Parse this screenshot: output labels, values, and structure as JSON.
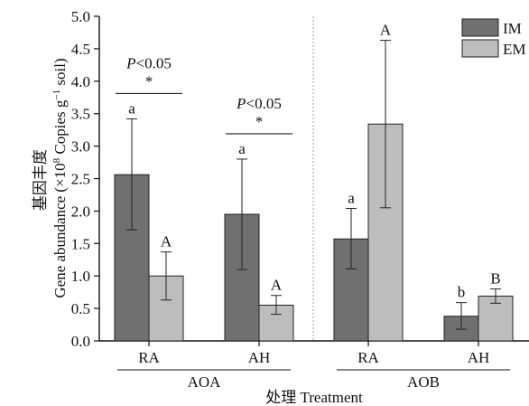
{
  "chart_data": {
    "type": "bar",
    "ylabel_cn": "基因丰度",
    "ylabel_en_prefix": "Gene abundance (×10",
    "ylabel_sup1": "8",
    "ylabel_mid": " Copies g",
    "ylabel_sup2": "−1",
    "ylabel_end": " soil)",
    "xlabel": "处理 Treatment",
    "ylim": [
      0,
      5.0
    ],
    "yticks": [
      "0.0",
      "0.5",
      "1.0",
      "1.5",
      "2.0",
      "2.5",
      "3.0",
      "3.5",
      "4.0",
      "4.5",
      "5.0"
    ],
    "grid": false,
    "legend_position": "top-right",
    "series": [
      {
        "name": "IM",
        "color": "#707070"
      },
      {
        "name": "EM",
        "color": "#bdbdbd"
      }
    ],
    "groups": [
      {
        "label": "AOA",
        "categories": [
          {
            "label": "RA",
            "bars": [
              {
                "series": "IM",
                "value": 2.56,
                "err_low": 1.71,
                "err_high": 3.42,
                "letter": "a"
              },
              {
                "series": "EM",
                "value": 1.0,
                "err_low": 0.63,
                "err_high": 1.37,
                "letter": "A"
              }
            ],
            "significance": {
              "p_text": "P",
              "p_rest": "<0.05",
              "star": "*"
            }
          },
          {
            "label": "AH",
            "bars": [
              {
                "series": "IM",
                "value": 1.95,
                "err_low": 1.1,
                "err_high": 2.8,
                "letter": "a"
              },
              {
                "series": "EM",
                "value": 0.55,
                "err_low": 0.41,
                "err_high": 0.7,
                "letter": "A"
              }
            ],
            "significance": {
              "p_text": "P",
              "p_rest": "<0.05",
              "star": "*"
            }
          }
        ]
      },
      {
        "label": "AOB",
        "categories": [
          {
            "label": "RA",
            "bars": [
              {
                "series": "IM",
                "value": 1.57,
                "err_low": 1.11,
                "err_high": 2.04,
                "letter": "a"
              },
              {
                "series": "EM",
                "value": 3.34,
                "err_low": 2.05,
                "err_high": 4.63,
                "letter": "A"
              }
            ]
          },
          {
            "label": "AH",
            "bars": [
              {
                "series": "IM",
                "value": 0.38,
                "err_low": 0.18,
                "err_high": 0.59,
                "letter": "b"
              },
              {
                "series": "EM",
                "value": 0.69,
                "err_low": 0.58,
                "err_high": 0.8,
                "letter": "B"
              }
            ]
          }
        ]
      }
    ]
  }
}
